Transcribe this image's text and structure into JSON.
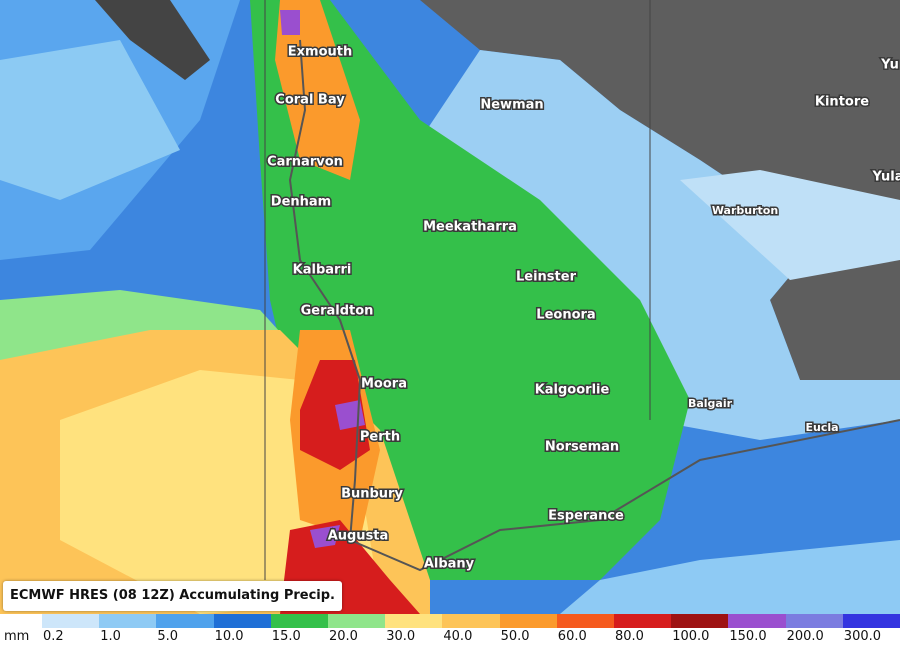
{
  "title": "ECMWF HRES (08 12Z) Accumulating Precip.",
  "places": [
    "Exmouth",
    "Coral Bay",
    "Newman",
    "Kintore",
    "Yu",
    "Carnarvon",
    "Yula",
    "Denham",
    "Warburton",
    "Meekatharra",
    "Leinster",
    "Kalbarri",
    "Geraldton",
    "Leonora",
    "Moora",
    "Kalgoorlie",
    "Balgair",
    "Eucla",
    "Perth",
    "Norseman",
    "Bunbury",
    "Esperance",
    "Augusta",
    "Albany"
  ],
  "legend": {
    "unit": "mm",
    "items": [
      {
        "label": "0.2",
        "color": "#cde6fa"
      },
      {
        "label": "1.0",
        "color": "#8ecaf4"
      },
      {
        "label": "5.0",
        "color": "#4fa2ec"
      },
      {
        "label": "10.0",
        "color": "#1f6fd6"
      },
      {
        "label": "15.0",
        "color": "#34c04a"
      },
      {
        "label": "20.0",
        "color": "#8fe58a"
      },
      {
        "label": "30.0",
        "color": "#ffe27e"
      },
      {
        "label": "40.0",
        "color": "#fdc458"
      },
      {
        "label": "50.0",
        "color": "#fb9a2c"
      },
      {
        "label": "60.0",
        "color": "#f55a1e"
      },
      {
        "label": "80.0",
        "color": "#d61d1d"
      },
      {
        "label": "100.0",
        "color": "#9e1212"
      },
      {
        "label": "150.0",
        "color": "#9a4fcf"
      },
      {
        "label": "200.0",
        "color": "#7b7ce0"
      },
      {
        "label": "300.0",
        "color": "#3434e0"
      }
    ]
  }
}
